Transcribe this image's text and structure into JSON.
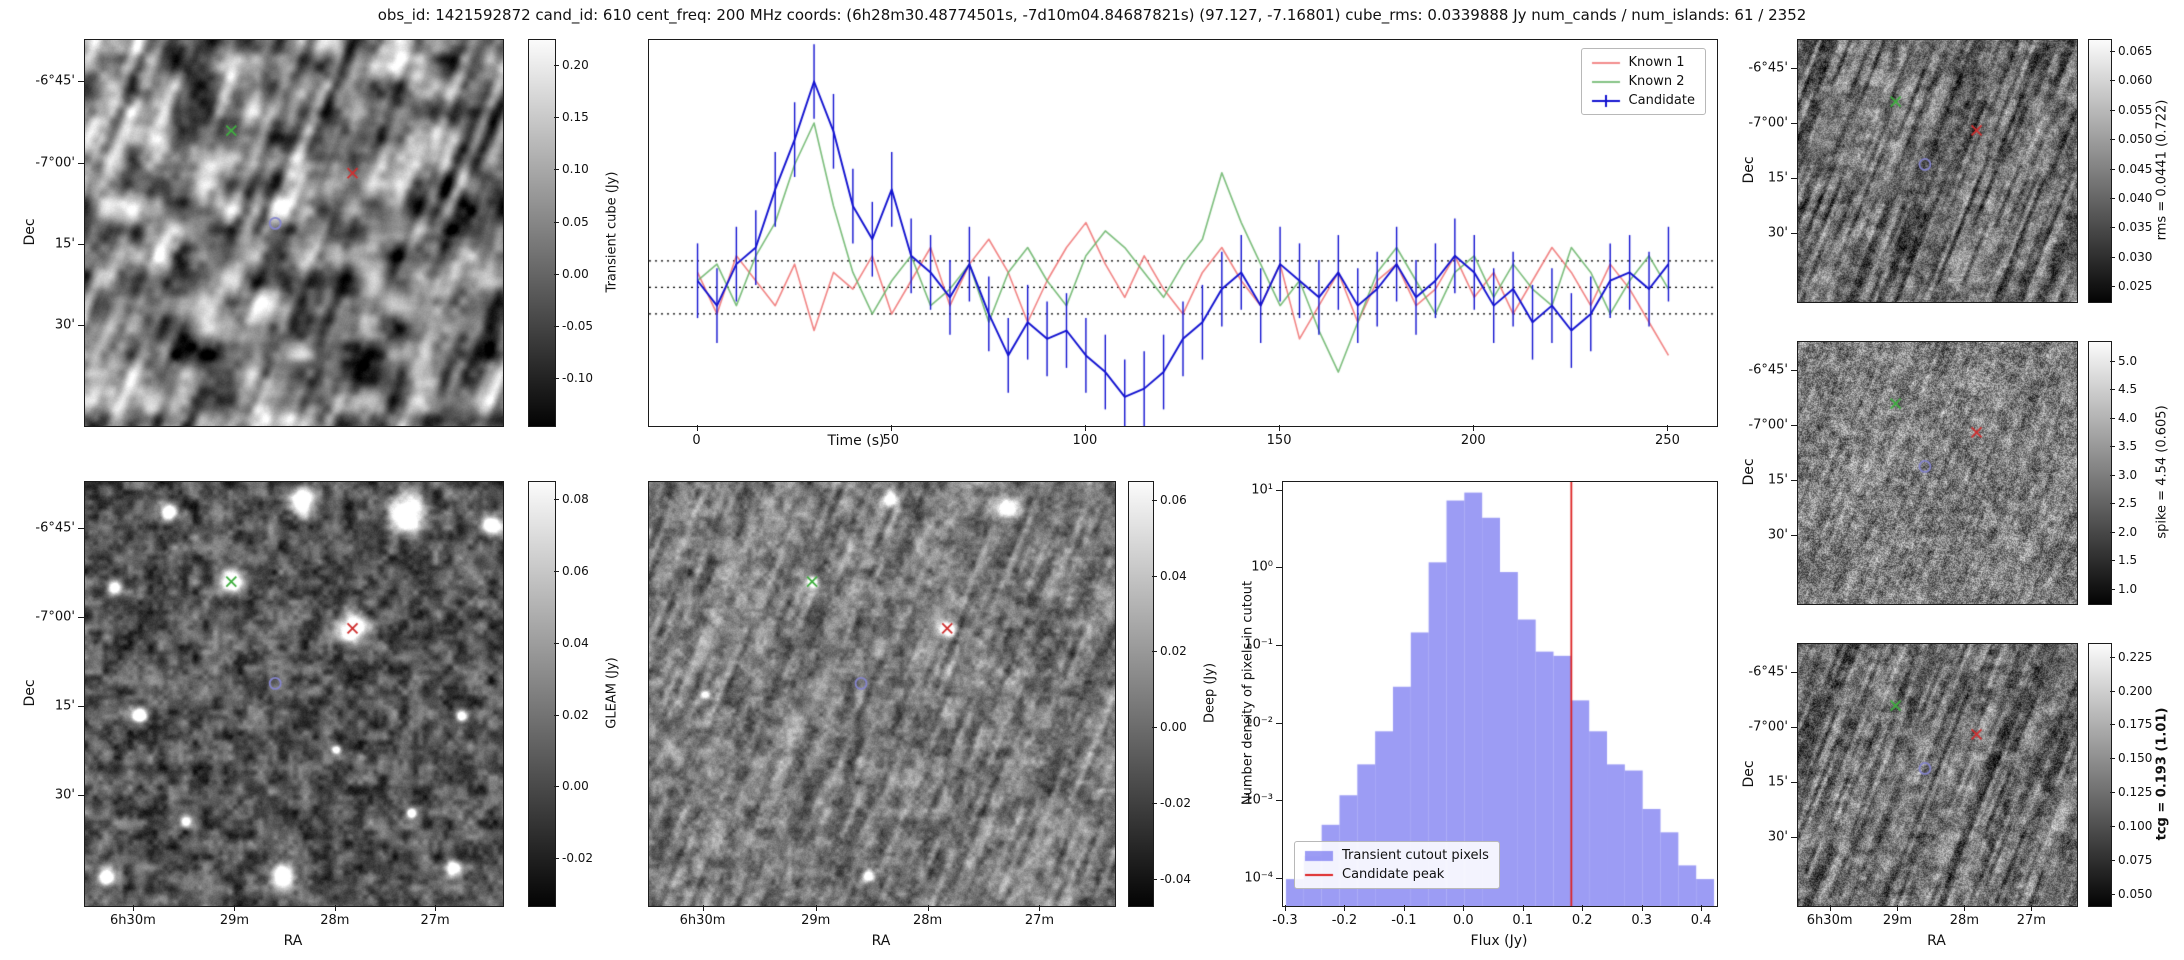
{
  "title": "obs_id: 1421592872 cand_id: 610 cent_freq: 200 MHz coords: (6h28m30.48774501s, -7d10m04.84687821s) (97.127, -7.16801) cube_rms: 0.0339888 Jy num_cands / num_islands: 61 / 2352",
  "axes": {
    "dec_label": "Dec",
    "ra_label": "RA",
    "dec_ticks": [
      "-6°45'",
      "-7°00'",
      "15'",
      "30'"
    ],
    "ra_ticks": [
      "6h30m",
      "29m",
      "28m",
      "27m"
    ]
  },
  "panels": {
    "transient": {
      "colorbar_label": "Transient cube (Jy)",
      "cbar_ticks": [
        "0.20",
        "0.15",
        "0.10",
        "0.05",
        "0.00",
        "-0.05",
        "-0.10"
      ],
      "cbar_tick_values": [
        0.2,
        0.15,
        0.1,
        0.05,
        0.0,
        -0.05,
        -0.1
      ],
      "cbar_vmin": -0.145,
      "cbar_vmax": 0.225
    },
    "gleam": {
      "colorbar_label": "GLEAM (Jy)",
      "cbar_ticks": [
        "0.08",
        "0.06",
        "0.04",
        "0.02",
        "0.00",
        "-0.02"
      ],
      "cbar_tick_values": [
        0.08,
        0.06,
        0.04,
        0.02,
        0.0,
        -0.02
      ],
      "cbar_vmin": -0.033,
      "cbar_vmax": 0.085,
      "source_amp": 1.15,
      "sources": [
        [
          0.52,
          0.045,
          9
        ],
        [
          0.77,
          0.07,
          12
        ],
        [
          0.97,
          0.1,
          7
        ],
        [
          0.2,
          0.07,
          5
        ],
        [
          0.07,
          0.25,
          5
        ],
        [
          0.35,
          0.235,
          8
        ],
        [
          0.64,
          0.345,
          9
        ],
        [
          0.13,
          0.55,
          5
        ],
        [
          0.9,
          0.55,
          4
        ],
        [
          0.24,
          0.8,
          4
        ],
        [
          0.47,
          0.93,
          8
        ],
        [
          0.05,
          0.93,
          5
        ],
        [
          0.88,
          0.91,
          5
        ],
        [
          0.6,
          0.63,
          3
        ],
        [
          0.78,
          0.78,
          3
        ]
      ]
    },
    "deep": {
      "colorbar_label": "Deep (Jy)",
      "cbar_ticks": [
        "0.06",
        "0.04",
        "0.02",
        "0.00",
        "-0.02",
        "-0.04"
      ],
      "cbar_tick_values": [
        0.06,
        0.04,
        0.02,
        0.0,
        -0.02,
        -0.04
      ],
      "cbar_vmin": -0.047,
      "cbar_vmax": 0.065,
      "source_amp": 0.85,
      "sources": [
        [
          0.52,
          0.04,
          5
        ],
        [
          0.77,
          0.06,
          7
        ],
        [
          0.35,
          0.235,
          4
        ],
        [
          0.64,
          0.345,
          5
        ],
        [
          0.47,
          0.93,
          4
        ],
        [
          0.12,
          0.5,
          3
        ]
      ]
    },
    "rms": {
      "colorbar_label": "rms = 0.0441 (0.722)",
      "cbar_ticks": [
        "0.065",
        "0.060",
        "0.055",
        "0.050",
        "0.045",
        "0.040",
        "0.035",
        "0.030",
        "0.025"
      ],
      "cbar_tick_values": [
        0.065,
        0.06,
        0.055,
        0.05,
        0.045,
        0.04,
        0.035,
        0.03,
        0.025
      ],
      "cbar_vmin": 0.0225,
      "cbar_vmax": 0.067
    },
    "spike": {
      "colorbar_label": "spike = 4.54 (0.605)",
      "cbar_ticks": [
        "5.0",
        "4.5",
        "4.0",
        "3.5",
        "3.0",
        "2.5",
        "2.0",
        "1.5",
        "1.0"
      ],
      "cbar_tick_values": [
        5.0,
        4.5,
        4.0,
        3.5,
        3.0,
        2.5,
        2.0,
        1.5,
        1.0
      ],
      "cbar_vmin": 0.75,
      "cbar_vmax": 5.35
    },
    "tcg": {
      "colorbar_label": "tcg = 0.193 (1.01)",
      "bold": true,
      "cbar_ticks": [
        "0.225",
        "0.200",
        "0.175",
        "0.150",
        "0.125",
        "0.100",
        "0.075",
        "0.050"
      ],
      "cbar_tick_values": [
        0.225,
        0.2,
        0.175,
        0.15,
        0.125,
        0.1,
        0.075,
        0.05
      ],
      "cbar_vmin": 0.042,
      "cbar_vmax": 0.235
    }
  },
  "markers": [
    {
      "name": "known-1-marker",
      "shape": "x",
      "color": "#cf2f2f",
      "fx": 0.64,
      "fy": 0.345
    },
    {
      "name": "known-2-marker",
      "shape": "x",
      "color": "#3fae3f",
      "fx": 0.35,
      "fy": 0.235
    },
    {
      "name": "candidate-marker",
      "shape": "circle",
      "color": "#8585cc",
      "fx": 0.455,
      "fy": 0.475
    }
  ],
  "chart_data": [
    {
      "type": "line",
      "name": "lightcurve",
      "xlabel": "Time (s)",
      "ylabel": "",
      "xlim": [
        -12.5,
        262.5
      ],
      "ylim": [
        -0.165,
        0.3
      ],
      "xticks": [
        0,
        50,
        100,
        150,
        200,
        250
      ],
      "xtick_labels": [
        "0",
        "50",
        "100",
        "150",
        "200",
        "250"
      ],
      "hlines": [
        0.034,
        0.002,
        -0.03
      ],
      "legend_position": "upper right",
      "x": [
        0,
        5,
        10,
        15,
        20,
        25,
        30,
        35,
        40,
        45,
        50,
        55,
        60,
        65,
        70,
        75,
        80,
        85,
        90,
        95,
        100,
        105,
        110,
        115,
        120,
        125,
        130,
        135,
        140,
        145,
        150,
        155,
        160,
        165,
        170,
        175,
        180,
        185,
        190,
        195,
        200,
        205,
        210,
        215,
        220,
        225,
        230,
        235,
        240,
        245,
        250
      ],
      "series": [
        {
          "name": "Known 1",
          "color": "#ef7070",
          "values": [
            0.02,
            -0.03,
            0.04,
            0.01,
            -0.02,
            0.03,
            -0.05,
            0.02,
            0.0,
            0.04,
            -0.03,
            0.01,
            0.05,
            -0.02,
            0.03,
            0.06,
            0.02,
            -0.04,
            0.01,
            0.05,
            0.08,
            0.03,
            -0.01,
            0.04,
            0.0,
            -0.03,
            0.02,
            0.05,
            0.01,
            -0.02,
            0.03,
            -0.06,
            -0.02,
            0.02,
            -0.04,
            0.01,
            0.03,
            -0.02,
            0.0,
            0.04,
            -0.01,
            0.02,
            -0.03,
            0.01,
            0.05,
            0.02,
            -0.02,
            0.03,
            0.0,
            -0.04,
            -0.08
          ]
        },
        {
          "name": "Known 2",
          "color": "#66b366",
          "values": [
            0.01,
            0.03,
            -0.02,
            0.04,
            0.08,
            0.15,
            0.2,
            0.1,
            0.02,
            -0.03,
            0.01,
            0.04,
            -0.02,
            0.0,
            0.03,
            -0.04,
            0.02,
            0.05,
            0.01,
            -0.02,
            0.04,
            0.07,
            0.05,
            0.02,
            -0.01,
            0.03,
            0.06,
            0.14,
            0.08,
            0.03,
            -0.02,
            0.01,
            -0.05,
            -0.1,
            -0.04,
            0.02,
            0.05,
            0.01,
            -0.03,
            0.02,
            0.04,
            -0.01,
            0.03,
            0.0,
            -0.02,
            0.05,
            0.02,
            -0.03,
            0.01,
            0.04,
            0.0
          ]
        },
        {
          "name": "Candidate",
          "color": "#1212d0",
          "yerr": 0.045,
          "values": [
            0.01,
            -0.02,
            0.03,
            0.05,
            0.12,
            0.18,
            0.25,
            0.19,
            0.1,
            0.06,
            0.12,
            0.04,
            0.02,
            -0.01,
            0.03,
            -0.03,
            -0.08,
            -0.04,
            -0.06,
            -0.05,
            -0.08,
            -0.1,
            -0.13,
            -0.12,
            -0.1,
            -0.06,
            -0.04,
            0.0,
            0.02,
            -0.02,
            0.03,
            0.01,
            -0.01,
            0.02,
            -0.02,
            0.0,
            0.03,
            -0.01,
            0.01,
            0.04,
            0.02,
            -0.02,
            0.0,
            -0.04,
            -0.02,
            -0.05,
            -0.03,
            0.01,
            0.02,
            0.0,
            0.03
          ]
        }
      ]
    },
    {
      "type": "bar",
      "name": "pixel-histogram",
      "xlabel": "Flux (Jy)",
      "ylabel": "Number density of pixels in cutout",
      "yscale": "log",
      "xlim": [
        -0.305,
        0.425
      ],
      "ylim": [
        4.5e-05,
        13
      ],
      "xticks": [
        -0.3,
        -0.2,
        -0.1,
        0.0,
        0.1,
        0.2,
        0.3,
        0.4
      ],
      "xtick_labels": [
        "-0.3",
        "-0.2",
        "-0.1",
        "0.0",
        "0.1",
        "0.2",
        "0.3",
        "0.4"
      ],
      "ytick_values": [
        10,
        1,
        0.1,
        0.01,
        0.001,
        0.0001
      ],
      "ytick_labels": [
        "10¹",
        "10⁰",
        "10⁻¹",
        "10⁻²",
        "10⁻³",
        "10⁻⁴"
      ],
      "bin_start": -0.3,
      "bin_width": 0.03,
      "values": [
        0.0001,
        0.0002,
        0.0005,
        0.0012,
        0.003,
        0.008,
        0.03,
        0.15,
        1.2,
        7.5,
        9.5,
        4.5,
        0.9,
        0.22,
        0.085,
        0.075,
        0.02,
        0.008,
        0.003,
        0.0025,
        0.0008,
        0.0004,
        0.00015,
        0.0001
      ],
      "candidate_peak": 0.18,
      "bar_color": "#7b7bf0",
      "peak_color": "#dd2222",
      "legend": [
        {
          "label": "Transient cutout pixels",
          "type": "patch"
        },
        {
          "label": "Candidate peak",
          "type": "line"
        }
      ]
    }
  ]
}
